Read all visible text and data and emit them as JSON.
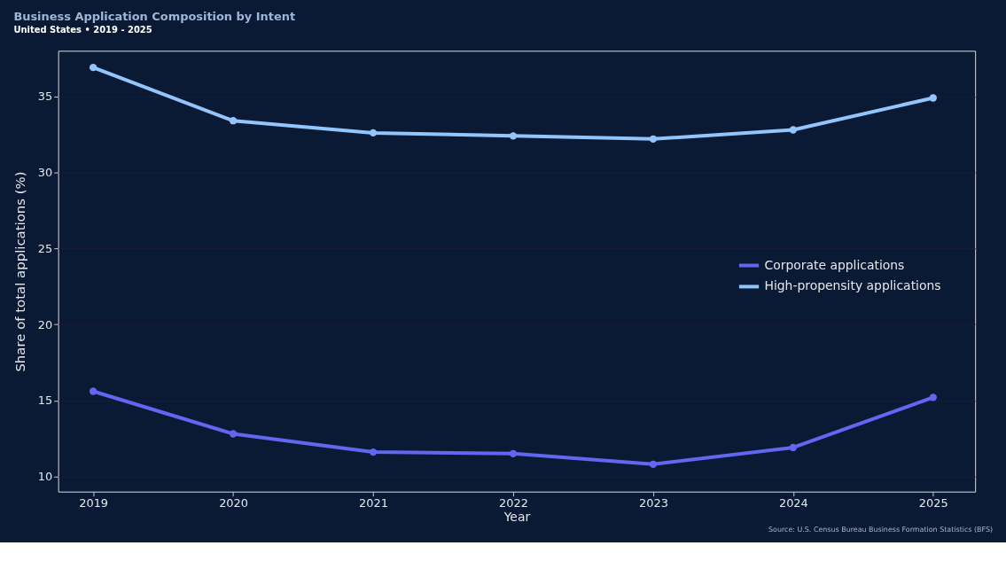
{
  "chart_data": {
    "type": "line",
    "title": "Business Application Composition by Intent",
    "subtitle": "United States • 2019 - 2025",
    "xlabel": "Year",
    "ylabel": "Share of total applications (%)",
    "x": [
      2019,
      2020,
      2021,
      2022,
      2023,
      2024,
      2025
    ],
    "series": [
      {
        "name": "Corporate applications",
        "color": "#6366f1",
        "values": [
          15.6,
          12.8,
          11.6,
          11.5,
          10.8,
          11.9,
          15.2
        ]
      },
      {
        "name": "High-propensity applications",
        "color": "#93c5fd",
        "values": [
          36.9,
          33.4,
          32.6,
          32.4,
          32.2,
          32.8,
          34.9
        ]
      }
    ],
    "xlim": [
      2018.75,
      2025.3
    ],
    "xticks": [
      2019,
      2020,
      2021,
      2022,
      2023,
      2024,
      2025
    ],
    "ylim": [
      9,
      38
    ],
    "yticks": [
      10,
      15,
      20,
      25,
      30,
      35
    ],
    "grid": "y",
    "legend": "right",
    "marker": "circle",
    "line_style": "solid",
    "annotations": [
      "Source: U.S. Census Bureau Business Formation Statistics (BFS)"
    ]
  }
}
